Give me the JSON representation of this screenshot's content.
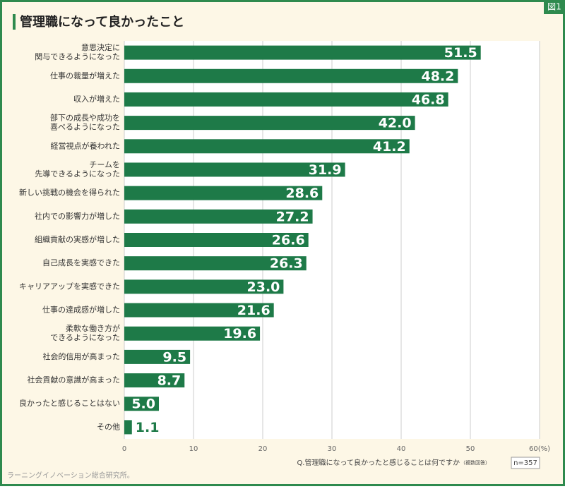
{
  "chart_data": {
    "type": "barh",
    "title": "管理職になって良かったこと",
    "badge": "図1",
    "categories": [
      [
        "意思決定に",
        "関与できるようになった"
      ],
      [
        "仕事の裁量が増えた"
      ],
      [
        "収入が増えた"
      ],
      [
        "部下の成長や成功を",
        "喜べるようになった"
      ],
      [
        "経営視点が養われた"
      ],
      [
        "チームを",
        "先導できるようになった"
      ],
      [
        "新しい挑戦の機会を得られた"
      ],
      [
        "社内での影響力が増した"
      ],
      [
        "組織貢献の実感が増した"
      ],
      [
        "自己成長を実感できた"
      ],
      [
        "キャリアアップを実感できた"
      ],
      [
        "仕事の達成感が増した"
      ],
      [
        "柔軟な働き方が",
        "できるようになった"
      ],
      [
        "社会的信用が高まった"
      ],
      [
        "社会貢献の意識が高まった"
      ],
      [
        "良かったと感じることはない"
      ],
      [
        "その他"
      ]
    ],
    "values": [
      51.5,
      48.2,
      46.8,
      42,
      41.2,
      31.9,
      28.6,
      27.2,
      26.6,
      26.3,
      23,
      21.6,
      19.6,
      9.5,
      8.7,
      5,
      1.1
    ],
    "value_labels": [
      "51.5",
      "48.2",
      "46.8",
      "42.0",
      "41.2",
      "31.9",
      "28.6",
      "27.2",
      "26.6",
      "26.3",
      "23.0",
      "21.6",
      "19.6",
      "9.5",
      "8.7",
      "5.0",
      "1.1"
    ],
    "color": "#1e7a48",
    "xlim": [
      0,
      60
    ],
    "xticks": [
      0,
      10,
      20,
      30,
      40,
      50,
      {
        "value": 60,
        "label": "60(%)"
      }
    ],
    "grid": true,
    "question": "Q.管理職になって良かったと感じることは何ですか",
    "question_note": "（複数回答）",
    "sample": "n=357",
    "source": "ラーニングイノベーション総合研究所。"
  }
}
